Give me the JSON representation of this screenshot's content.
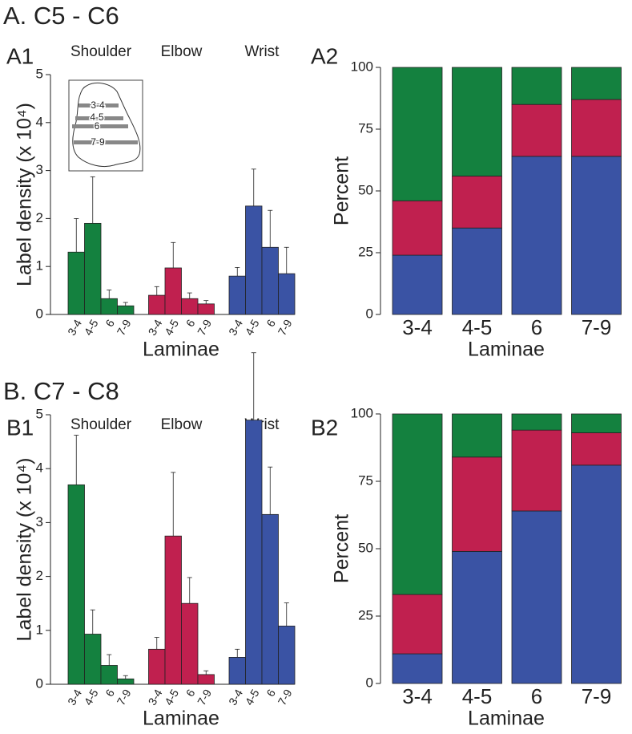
{
  "sections": [
    "A. C5 - C6",
    "B. C7 - C8"
  ],
  "chart_data": [
    {
      "type": "grouped_bar",
      "title": "A1",
      "ylabel": "Label density (x 10⁴)",
      "xlabel": "Laminae",
      "categories": [
        "3-4",
        "4-5",
        "6",
        "7-9"
      ],
      "inset_labels": [
        "3-4",
        "4-5",
        "6",
        "7-9"
      ],
      "ylim": [
        0,
        5
      ],
      "yticks": [
        0,
        1,
        2,
        3,
        4,
        5
      ],
      "series": [
        {
          "name": "Shoulder",
          "color": "#14813f",
          "values": [
            1.3,
            1.9,
            0.33,
            0.18
          ],
          "errors": [
            0.7,
            0.97,
            0.18,
            0.07
          ]
        },
        {
          "name": "Elbow",
          "color": "#c0204f",
          "values": [
            0.4,
            0.97,
            0.33,
            0.22
          ],
          "errors": [
            0.18,
            0.53,
            0.12,
            0.07
          ]
        },
        {
          "name": "Wrist",
          "color": "#3a53a4",
          "values": [
            0.8,
            2.26,
            1.4,
            0.85
          ],
          "errors": [
            0.18,
            0.77,
            0.77,
            0.55
          ]
        }
      ]
    },
    {
      "type": "stacked_bar",
      "title": "A2",
      "ylabel": "Percent",
      "xlabel": "Laminae",
      "categories": [
        "3-4",
        "4-5",
        "6",
        "7-9"
      ],
      "ylim": [
        0,
        100
      ],
      "yticks": [
        0,
        25,
        50,
        75,
        100
      ],
      "series": [
        {
          "color": "#3a53a4",
          "values": [
            24,
            35,
            64,
            64
          ]
        },
        {
          "color": "#c0204f",
          "values": [
            22,
            21,
            21,
            23
          ]
        },
        {
          "color": "#14813f",
          "values": [
            54,
            44,
            15,
            13
          ]
        }
      ]
    },
    {
      "type": "grouped_bar",
      "title": "B1",
      "ylabel": "Label density (x 10⁴)",
      "xlabel": "Laminae",
      "categories": [
        "3-4",
        "4-5",
        "6",
        "7-9"
      ],
      "ylim": [
        0,
        5
      ],
      "yticks": [
        0,
        1,
        2,
        3,
        4,
        5
      ],
      "series": [
        {
          "name": "Shoulder",
          "color": "#14813f",
          "values": [
            3.7,
            0.93,
            0.35,
            0.1
          ],
          "errors": [
            0.92,
            0.45,
            0.2,
            0.06
          ]
        },
        {
          "name": "Elbow",
          "color": "#c0204f",
          "values": [
            0.65,
            2.75,
            1.5,
            0.18
          ],
          "errors": [
            0.22,
            1.18,
            0.48,
            0.07
          ]
        },
        {
          "name": "Wrist",
          "color": "#3a53a4",
          "values": [
            0.5,
            4.9,
            3.15,
            1.08
          ],
          "errors": [
            0.15,
            1.25,
            0.88,
            0.43
          ]
        }
      ]
    },
    {
      "type": "stacked_bar",
      "title": "B2",
      "ylabel": "Percent",
      "xlabel": "Laminae",
      "categories": [
        "3-4",
        "4-5",
        "6",
        "7-9"
      ],
      "ylim": [
        0,
        100
      ],
      "yticks": [
        0,
        25,
        50,
        75,
        100
      ],
      "series": [
        {
          "color": "#3a53a4",
          "values": [
            11,
            49,
            64,
            81
          ]
        },
        {
          "color": "#c0204f",
          "values": [
            22,
            35,
            30,
            12
          ]
        },
        {
          "color": "#14813f",
          "values": [
            67,
            16,
            6,
            7
          ]
        }
      ]
    }
  ]
}
